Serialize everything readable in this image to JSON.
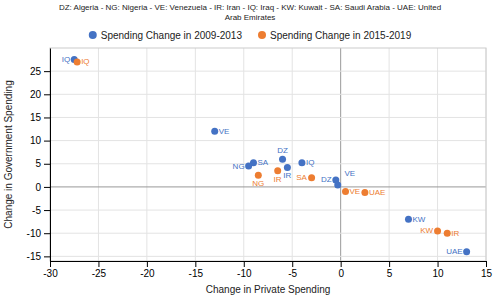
{
  "chart_data": {
    "type": "scatter",
    "title": "DZ: Algeria - NG: Nigeria - VE: Venezuela - IR: Iran - IQ: Iraq - KW: Kuwait - SA: Saudi Arabia - UAE: United\nArab Emirates",
    "xlabel": "Change in Private Spending",
    "ylabel": "Change in Government Spending",
    "xlim": [
      -30,
      15
    ],
    "ylim": [
      -16,
      30
    ],
    "xticks": [
      -30,
      -25,
      -20,
      -15,
      -10,
      -5,
      0,
      5,
      10,
      15
    ],
    "yticks": [
      -15,
      -10,
      -5,
      0,
      5,
      10,
      15,
      20,
      25
    ],
    "grid": true,
    "legend": "top",
    "series": [
      {
        "name": "Spending Change in 2009-2013",
        "color": "#4472C4",
        "marker": "circle",
        "x": [
          -27.5,
          -13,
          -9.0,
          -9.5,
          -6.0,
          -4.0,
          -5.5,
          -0.5,
          -0.3,
          7.0,
          13.0
        ],
        "values": [
          27.5,
          12,
          5.2,
          4.5,
          6.0,
          5.2,
          4.2,
          1.5,
          0.4,
          -7.0,
          -14.0
        ],
        "labels": [
          "IQ",
          "VE",
          "SA",
          "NG",
          "DZ",
          "IQ",
          "IR",
          "DZ",
          "VE",
          "KW",
          "UAE"
        ]
      },
      {
        "name": "Spending Change in 2015-2019",
        "color": "#ED7D31",
        "marker": "circle",
        "x": [
          -27.2,
          -8.5,
          -6.5,
          -3.0,
          0.5,
          2.5,
          10.0,
          11.0
        ],
        "values": [
          27.0,
          2.5,
          3.5,
          2.0,
          -1.0,
          -1.2,
          -9.5,
          -10.0
        ],
        "labels": [
          "IQ",
          "NG",
          "IR",
          "SA",
          "VE",
          "UAE",
          "KW",
          "IR"
        ]
      }
    ]
  }
}
